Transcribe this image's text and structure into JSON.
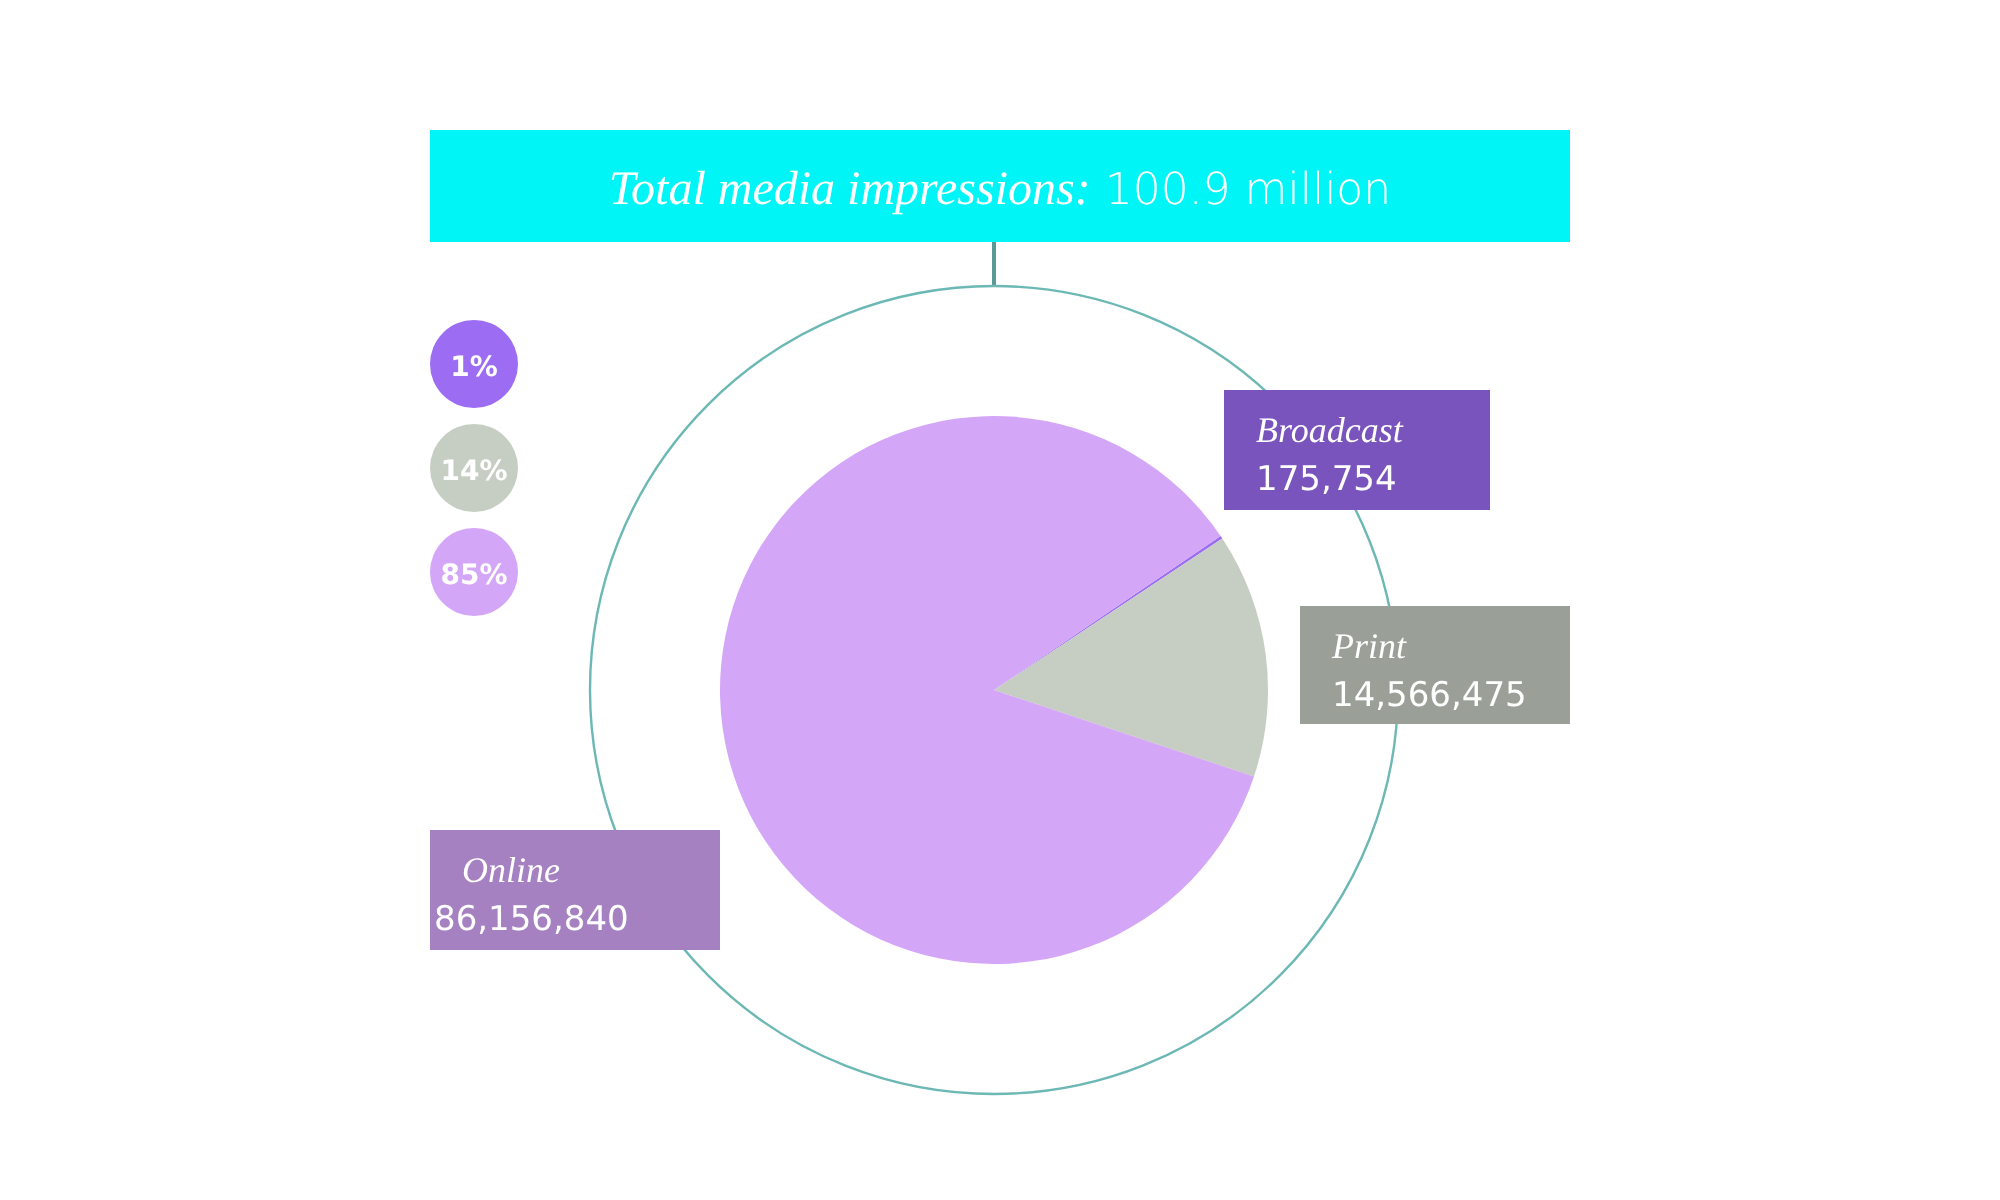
{
  "chart_data": {
    "type": "pie",
    "title": "Total media impressions: 100.9 million",
    "categories": [
      "Broadcast",
      "Print",
      "Online"
    ],
    "values": [
      175754,
      14566475,
      86156840
    ],
    "colors": [
      "#9c6cf2",
      "#c6cec3",
      "#d4a6f8"
    ],
    "value_labels": [
      "175,754",
      "14,566,475",
      "86,156,840"
    ],
    "annotations": [
      "1%",
      "14%",
      "85%"
    ]
  }
}
